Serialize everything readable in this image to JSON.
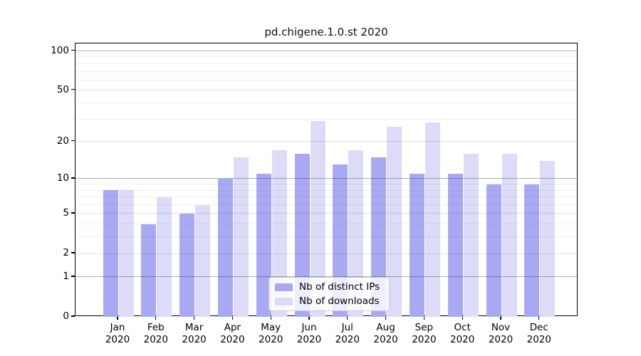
{
  "title": "pd.chigene.1.0.st 2020",
  "chart_data": {
    "type": "bar",
    "title": "pd.chigene.1.0.st 2020",
    "categories": [
      "Jan 2020",
      "Feb 2020",
      "Mar 2020",
      "Apr 2020",
      "May 2020",
      "Jun 2020",
      "Jul 2020",
      "Aug 2020",
      "Sep 2020",
      "Oct 2020",
      "Nov 2020",
      "Dec 2020"
    ],
    "series": [
      {
        "name": "Nb of distinct IPs",
        "color": "#a9a9f3",
        "values": [
          8,
          4,
          5,
          10,
          11,
          16,
          13,
          15,
          11,
          11,
          9,
          9
        ]
      },
      {
        "name": "Nb of downloads",
        "color": "#dcdcf8",
        "values": [
          8,
          7,
          6,
          15,
          17,
          29,
          17,
          26,
          28,
          16,
          16,
          14
        ]
      }
    ],
    "xlabel": "",
    "ylabel": "",
    "yscale": "log1p",
    "ylim": [
      0,
      114
    ],
    "ytick_values": [
      0,
      1,
      2,
      5,
      10,
      20,
      50,
      100
    ],
    "minor_gridline_values": [
      3,
      4,
      6,
      7,
      8,
      9,
      30,
      40,
      60,
      70,
      80,
      90
    ],
    "emphasized_gridline_values": [
      1,
      10,
      100
    ],
    "grid": true,
    "legend_position": "lower-center-inside"
  }
}
